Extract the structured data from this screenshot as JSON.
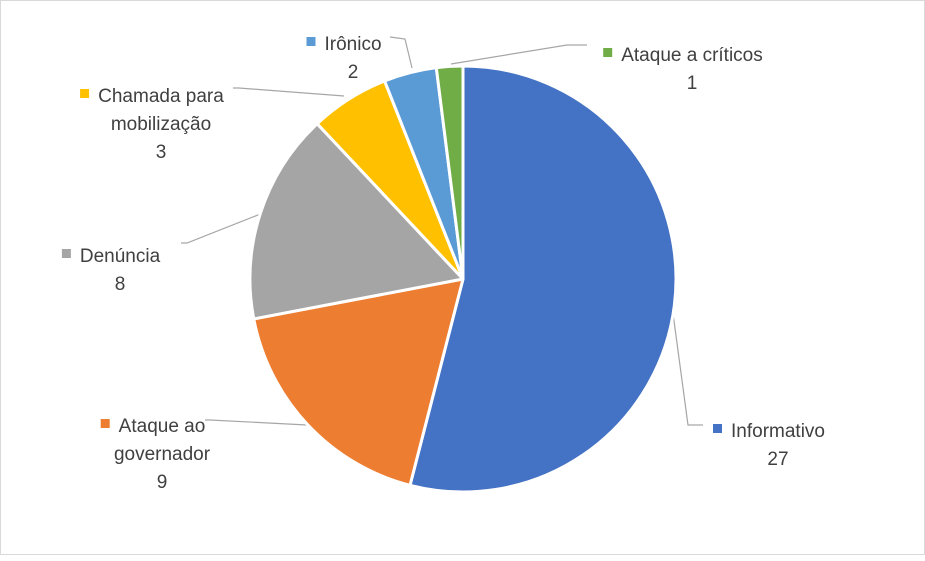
{
  "chart_data": {
    "type": "pie",
    "title": "",
    "start_angle_deg": 0,
    "direction": "clockwise",
    "data_labels": "category name and value",
    "legend": "none",
    "slices": [
      {
        "label": "Informativo",
        "label_lines": [
          "Informativo"
        ],
        "value": 27,
        "value_label": "27",
        "color": "#4472C4"
      },
      {
        "label": "Ataque ao governador",
        "label_lines": [
          "Ataque ao",
          "governador"
        ],
        "value": 9,
        "value_label": "9",
        "color": "#ED7D31"
      },
      {
        "label": "Denúncia",
        "label_lines": [
          "Denúncia"
        ],
        "value": 8,
        "value_label": "8",
        "color": "#A5A5A5"
      },
      {
        "label": "Chamada para mobilização",
        "label_lines": [
          "Chamada para",
          "mobilização"
        ],
        "value": 3,
        "value_label": "3",
        "color": "#FFC000"
      },
      {
        "label": "Irônico",
        "label_lines": [
          "Irônico"
        ],
        "value": 2,
        "value_label": "2",
        "color": "#5B9BD5"
      },
      {
        "label": "Ataque a críticos",
        "label_lines": [
          "Ataque a críticos"
        ],
        "value": 1,
        "value_label": "1",
        "color": "#70AD47"
      }
    ]
  }
}
